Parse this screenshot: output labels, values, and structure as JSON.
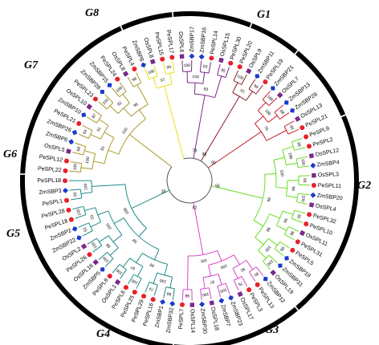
{
  "tree": {
    "leaves": [
      {
        "label": "ZmSBP8",
        "species": "Zm",
        "clade": "G8"
      },
      {
        "label": "OsSPL8",
        "species": "Os",
        "clade": "G8"
      },
      {
        "label": "PeSPL15",
        "species": "Pe",
        "clade": "G8"
      },
      {
        "label": "PeSPL17",
        "species": "Pe",
        "clade": "G8"
      },
      {
        "label": "OsSPL6",
        "species": "Os",
        "clade": "G7"
      },
      {
        "label": "ZmSBP17",
        "species": "Zm",
        "clade": "G7"
      },
      {
        "label": "ZmSBP16",
        "species": "Zm",
        "clade": "G7"
      },
      {
        "label": "PeSPL14",
        "species": "Pe",
        "clade": "G7"
      },
      {
        "label": "OsSPL15",
        "species": "Os",
        "clade": "G7"
      },
      {
        "label": "PeSPL30",
        "species": "Pe",
        "clade": "G7"
      },
      {
        "label": "PeSPL20",
        "species": "Pe",
        "clade": "G6"
      },
      {
        "label": "OsSPL9",
        "species": "Os",
        "clade": "G6"
      },
      {
        "label": "ZmSBP11",
        "species": "Zm",
        "clade": "G6"
      },
      {
        "label": "PeSPL19",
        "species": "Pe",
        "clade": "G6"
      },
      {
        "label": "ZmSBP21",
        "species": "Zm",
        "clade": "G5"
      },
      {
        "label": "OsSPL7",
        "species": "Os",
        "clade": "G5"
      },
      {
        "label": "ZmSBP13",
        "species": "Zm",
        "clade": "G5"
      },
      {
        "label": "ZmSBP29",
        "species": "Zm",
        "clade": "G5"
      },
      {
        "label": "OsSPL13",
        "species": "Os",
        "clade": "G5"
      },
      {
        "label": "PeSPL21",
        "species": "Pe",
        "clade": "G5"
      },
      {
        "label": "PeSPL9",
        "species": "Pe",
        "clade": "G4"
      },
      {
        "label": "PeSPL2",
        "species": "Pe",
        "clade": "G4"
      },
      {
        "label": "OsSPL12",
        "species": "Os",
        "clade": "G4"
      },
      {
        "label": "ZmSBP4",
        "species": "Zm",
        "clade": "G4"
      },
      {
        "label": "OsSPL3",
        "species": "Os",
        "clade": "G4"
      },
      {
        "label": "PeSPL11",
        "species": "Pe",
        "clade": "G4"
      },
      {
        "label": "ZmSBP20",
        "species": "Zm",
        "clade": "G4"
      },
      {
        "label": "OsSPL4",
        "species": "Os",
        "clade": "G4"
      },
      {
        "label": "PeSPL32",
        "species": "Pe",
        "clade": "G4"
      },
      {
        "label": "PeSPL10",
        "species": "Pe",
        "clade": "G4"
      },
      {
        "label": "OsSPL11",
        "species": "Os",
        "clade": "G4"
      },
      {
        "label": "PeSPL31",
        "species": "Pe",
        "clade": "G4"
      },
      {
        "label": "PeSPL5",
        "species": "Pe",
        "clade": "G4"
      },
      {
        "label": "ZmSBP19",
        "species": "Zm",
        "clade": "G4"
      },
      {
        "label": "ZmSBP31",
        "species": "Zm",
        "clade": "G4"
      },
      {
        "label": "OsSPL19",
        "species": "Os",
        "clade": "G4"
      },
      {
        "label": "ZmSBP12",
        "species": "Zm",
        "clade": "G3"
      },
      {
        "label": "PeSPL13",
        "species": "Pe",
        "clade": "G3"
      },
      {
        "label": "PeSPL3",
        "species": "Pe",
        "clade": "G3"
      },
      {
        "label": "OsSPL17",
        "species": "Os",
        "clade": "G3"
      },
      {
        "label": "ZmSBP23",
        "species": "Zm",
        "clade": "G3"
      },
      {
        "label": "ZmSBP7",
        "species": "Zm",
        "clade": "G3"
      },
      {
        "label": "OsSPL18",
        "species": "Os",
        "clade": "G3"
      },
      {
        "label": "ZmSBP30",
        "species": "Zm",
        "clade": "G3"
      },
      {
        "label": "OsSPL14",
        "species": "Os",
        "clade": "G3"
      },
      {
        "label": "PeSPL7",
        "species": "Pe",
        "clade": "G3"
      },
      {
        "label": "ZmSBP32",
        "species": "Zm",
        "clade": "G2"
      },
      {
        "label": "ZmSBP1",
        "species": "Zm",
        "clade": "G2"
      },
      {
        "label": "PeSPL16",
        "species": "Pe",
        "clade": "G2"
      },
      {
        "label": "PeSPL29",
        "species": "Pe",
        "clade": "G2"
      },
      {
        "label": "PeSPL25",
        "species": "Pe",
        "clade": "G2"
      },
      {
        "label": "PeSPL6",
        "species": "Pe",
        "clade": "G2"
      },
      {
        "label": "OsSPL1",
        "species": "Os",
        "clade": "G2"
      },
      {
        "label": "PeSPL8",
        "species": "Pe",
        "clade": "G2"
      },
      {
        "label": "ZmSBP5",
        "species": "Zm",
        "clade": "G2"
      },
      {
        "label": "OsSPL16",
        "species": "Os",
        "clade": "G2"
      },
      {
        "label": "PeSPL26",
        "species": "Pe",
        "clade": "G2"
      },
      {
        "label": "OsSPL2",
        "species": "Os",
        "clade": "G2"
      },
      {
        "label": "ZmSBP22",
        "species": "Zm",
        "clade": "G2"
      },
      {
        "label": "ZmSBP2",
        "species": "Zm",
        "clade": "G2"
      },
      {
        "label": "PeSPL18",
        "species": "Pe",
        "clade": "G2"
      },
      {
        "label": "PeSPL28",
        "species": "Pe",
        "clade": "G2"
      },
      {
        "label": "PeSPL1",
        "species": "Pe",
        "clade": "G2"
      },
      {
        "label": "ZmSBP3",
        "species": "Zm",
        "clade": "G2"
      },
      {
        "label": "PeSPL18",
        "species": "Pe",
        "clade": "G2"
      },
      {
        "label": "PeSPL22",
        "species": "Pe",
        "clade": "G1"
      },
      {
        "label": "PeSPL12",
        "species": "Pe",
        "clade": "G1"
      },
      {
        "label": "OsSPL5",
        "species": "Os",
        "clade": "G1"
      },
      {
        "label": "ZmSBP6",
        "species": "Zm",
        "clade": "G1"
      },
      {
        "label": "ZmSBP26",
        "species": "Zm",
        "clade": "G1"
      },
      {
        "label": "PeSPL21",
        "species": "Pe",
        "clade": "G1"
      },
      {
        "label": "ZmSBP10",
        "species": "Zm",
        "clade": "G1"
      },
      {
        "label": "OsSPL10",
        "species": "Os",
        "clade": "G1"
      },
      {
        "label": "PeSPL23",
        "species": "Pe",
        "clade": "G1"
      },
      {
        "label": "ZmSBP28",
        "species": "Zm",
        "clade": "G1"
      },
      {
        "label": "ZmSBP15",
        "species": "Zm",
        "clade": "G1"
      },
      {
        "label": "PeSPL24",
        "species": "Pe",
        "clade": "G1"
      },
      {
        "label": "OsSPL8",
        "species": "Os",
        "clade": "G1"
      },
      {
        "label": "PeSPL4",
        "species": "Pe",
        "clade": "G1"
      }
    ],
    "clades": [
      {
        "name": "G1",
        "color": "#a89a2a"
      },
      {
        "name": "G2",
        "color": "#1f8a8a"
      },
      {
        "name": "G3",
        "color": "#d946c8"
      },
      {
        "name": "G4",
        "color": "#66dd22"
      },
      {
        "name": "G5",
        "color": "#c8202a"
      },
      {
        "name": "G6",
        "color": "#8a1f2a"
      },
      {
        "name": "G7",
        "color": "#7a2a8a"
      },
      {
        "name": "G8",
        "color": "#e8e01a"
      }
    ],
    "markers": {
      "Pe": {
        "shape": "circle",
        "color": "#e8202a"
      },
      "Os": {
        "shape": "square",
        "color": "#7a2a8a"
      },
      "Zm": {
        "shape": "diamond",
        "color": "#1a3acc"
      }
    },
    "center_bootstrap": [
      "78",
      "98",
      "90",
      "56",
      "82",
      "28"
    ],
    "bootstraps": [
      "100",
      "99",
      "97",
      "100",
      "83",
      "95",
      "100",
      "93",
      "100",
      "98",
      "91",
      "100",
      "68",
      "99",
      "100",
      "76",
      "99",
      "100",
      "93",
      "100",
      "92",
      "96",
      "99",
      "100",
      "100",
      "99",
      "84",
      "100",
      "100",
      "98",
      "96",
      "85",
      "75",
      "100",
      "100",
      "99",
      "92",
      "97",
      "100",
      "100",
      "99",
      "74",
      "100",
      "100",
      "100",
      "100",
      "52",
      "100",
      "93",
      "100",
      "97",
      "99",
      "53",
      "100",
      "99",
      "100",
      "58",
      "100",
      "100",
      "68",
      "64",
      "87",
      "100",
      "100",
      "99",
      "100",
      "51",
      "82",
      "81",
      "96",
      "100",
      "100",
      "94",
      "53",
      "98",
      "84",
      "95",
      "69",
      "90",
      "58"
    ]
  },
  "brackets": [
    {
      "name": "G1",
      "color": "#000000"
    },
    {
      "name": "G2",
      "color": "#000000"
    },
    {
      "name": "G3",
      "color": "#000000"
    },
    {
      "name": "G4",
      "color": "#000000"
    },
    {
      "name": "G5",
      "color": "#000000"
    },
    {
      "name": "G6",
      "color": "#000000"
    },
    {
      "name": "G7",
      "color": "#000000"
    },
    {
      "name": "G8",
      "color": "#000000"
    }
  ]
}
